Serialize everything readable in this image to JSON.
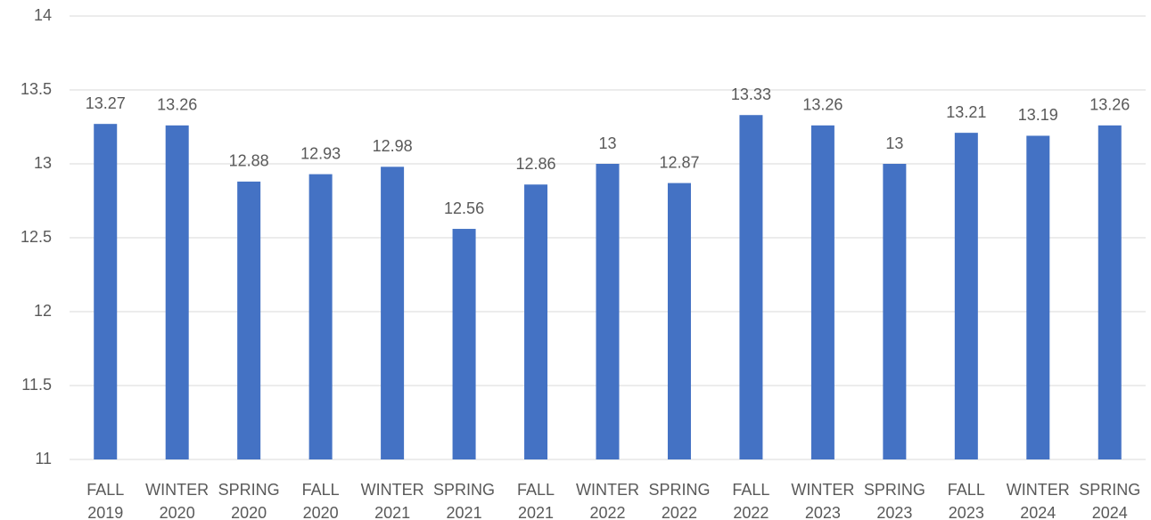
{
  "chart_data": {
    "type": "bar",
    "categories": [
      "FALL 2019",
      "WINTER 2020",
      "SPRING 2020",
      "FALL 2020",
      "WINTER 2021",
      "SPRING 2021",
      "FALL 2021",
      "WINTER 2022",
      "SPRING 2022",
      "FALL 2022",
      "WINTER 2023",
      "SPRING 2023",
      "FALL 2023",
      "WINTER 2024",
      "SPRING 2024"
    ],
    "values": [
      13.27,
      13.26,
      12.88,
      12.93,
      12.98,
      12.56,
      12.86,
      13,
      12.87,
      13.33,
      13.26,
      13,
      13.21,
      13.19,
      13.26
    ],
    "color": "#4472c4",
    "ylim": [
      11,
      14
    ],
    "yticks": [
      11,
      11.5,
      12,
      12.5,
      13,
      13.5,
      14
    ],
    "grid": true
  }
}
